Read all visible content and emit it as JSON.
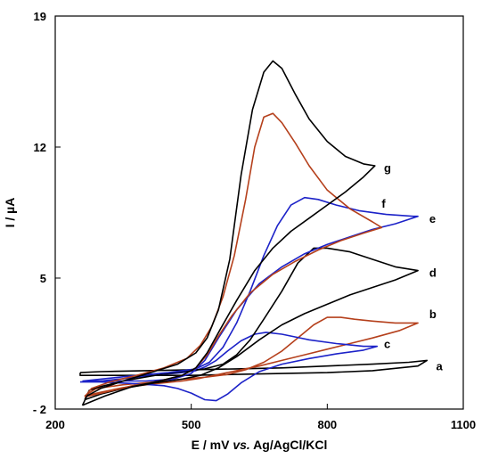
{
  "chart_data": {
    "type": "line",
    "xlabel_parts": [
      "E / mV ",
      "vs.",
      " Ag/AgCl/KCl"
    ],
    "ylabel": "I / µA",
    "xlim": [
      200,
      1100
    ],
    "ylim": [
      -2,
      19
    ],
    "xticks": [
      "200",
      "500",
      "800",
      "1100"
    ],
    "yticks": [
      "- 2",
      "5",
      "12",
      "19"
    ],
    "ytick_values": [
      -2,
      5,
      12,
      19
    ],
    "xtick_values": [
      200,
      500,
      800,
      1100
    ],
    "grid": false,
    "legend": "none",
    "series": [
      {
        "name": "a",
        "color": "#000000",
        "label_pos": [
          1040,
          0.3
        ],
        "points": [
          [
            255,
            -0.05
          ],
          [
            300,
            0.0
          ],
          [
            400,
            0.05
          ],
          [
            500,
            0.1
          ],
          [
            600,
            0.15
          ],
          [
            700,
            0.2
          ],
          [
            800,
            0.3
          ],
          [
            900,
            0.4
          ],
          [
            980,
            0.5
          ],
          [
            1020,
            0.6
          ],
          [
            1000,
            0.3
          ],
          [
            900,
            0.05
          ],
          [
            800,
            -0.05
          ],
          [
            700,
            -0.1
          ],
          [
            600,
            -0.15
          ],
          [
            500,
            -0.2
          ],
          [
            400,
            -0.2
          ],
          [
            300,
            -0.2
          ],
          [
            255,
            -0.2
          ],
          [
            255,
            -0.05
          ]
        ]
      },
      {
        "name": "b",
        "color": "#b5401c",
        "label_pos": [
          1025,
          3.1
        ],
        "points": [
          [
            265,
            -1.3
          ],
          [
            290,
            -0.9
          ],
          [
            350,
            -0.7
          ],
          [
            420,
            -0.55
          ],
          [
            480,
            -0.4
          ],
          [
            530,
            -0.3
          ],
          [
            580,
            -0.15
          ],
          [
            620,
            0.1
          ],
          [
            660,
            0.5
          ],
          [
            700,
            1.1
          ],
          [
            740,
            1.9
          ],
          [
            770,
            2.5
          ],
          [
            800,
            2.9
          ],
          [
            830,
            2.9
          ],
          [
            860,
            2.8
          ],
          [
            900,
            2.7
          ],
          [
            950,
            2.6
          ],
          [
            1000,
            2.6
          ],
          [
            960,
            2.2
          ],
          [
            900,
            1.8
          ],
          [
            850,
            1.5
          ],
          [
            800,
            1.2
          ],
          [
            750,
            0.9
          ],
          [
            700,
            0.6
          ],
          [
            650,
            0.3
          ],
          [
            600,
            0.05
          ],
          [
            560,
            -0.15
          ],
          [
            520,
            -0.35
          ],
          [
            480,
            -0.5
          ],
          [
            420,
            -0.65
          ],
          [
            350,
            -0.85
          ],
          [
            300,
            -1.1
          ],
          [
            265,
            -1.3
          ]
        ]
      },
      {
        "name": "c",
        "color": "#1c22c8",
        "label_pos": [
          925,
          1.5
        ],
        "points": [
          [
            255,
            -0.55
          ],
          [
            300,
            -0.5
          ],
          [
            380,
            -0.3
          ],
          [
            440,
            -0.15
          ],
          [
            480,
            -0.05
          ],
          [
            510,
            0.05
          ],
          [
            530,
            0.25
          ],
          [
            555,
            0.6
          ],
          [
            580,
            1.1
          ],
          [
            610,
            1.65
          ],
          [
            640,
            2.0
          ],
          [
            665,
            2.1
          ],
          [
            700,
            2.0
          ],
          [
            760,
            1.7
          ],
          [
            820,
            1.5
          ],
          [
            880,
            1.35
          ],
          [
            910,
            1.35
          ],
          [
            880,
            1.15
          ],
          [
            820,
            0.95
          ],
          [
            760,
            0.7
          ],
          [
            700,
            0.4
          ],
          [
            650,
            0.0
          ],
          [
            610,
            -0.6
          ],
          [
            580,
            -1.2
          ],
          [
            555,
            -1.55
          ],
          [
            530,
            -1.5
          ],
          [
            500,
            -1.15
          ],
          [
            470,
            -0.9
          ],
          [
            440,
            -0.75
          ],
          [
            380,
            -0.65
          ],
          [
            300,
            -0.55
          ],
          [
            255,
            -0.55
          ]
        ]
      },
      {
        "name": "d",
        "color": "#000000",
        "label_pos": [
          1025,
          5.3
        ],
        "points": [
          [
            265,
            -1.5
          ],
          [
            275,
            -1.0
          ],
          [
            300,
            -0.8
          ],
          [
            350,
            -0.5
          ],
          [
            420,
            -0.2
          ],
          [
            480,
            0.0
          ],
          [
            530,
            0.15
          ],
          [
            570,
            0.4
          ],
          [
            600,
            0.9
          ],
          [
            630,
            1.7
          ],
          [
            660,
            2.8
          ],
          [
            700,
            4.3
          ],
          [
            735,
            5.8
          ],
          [
            770,
            6.6
          ],
          [
            800,
            6.6
          ],
          [
            850,
            6.4
          ],
          [
            900,
            6.0
          ],
          [
            950,
            5.6
          ],
          [
            1000,
            5.4
          ],
          [
            950,
            4.9
          ],
          [
            900,
            4.5
          ],
          [
            850,
            4.1
          ],
          [
            800,
            3.6
          ],
          [
            750,
            3.1
          ],
          [
            700,
            2.5
          ],
          [
            650,
            1.7
          ],
          [
            600,
            0.8
          ],
          [
            560,
            0.2
          ],
          [
            520,
            -0.2
          ],
          [
            480,
            -0.4
          ],
          [
            420,
            -0.6
          ],
          [
            350,
            -0.9
          ],
          [
            300,
            -1.2
          ],
          [
            265,
            -1.5
          ]
        ]
      },
      {
        "name": "e",
        "color": "#1c22c8",
        "label_pos": [
          1025,
          8.2
        ],
        "points": [
          [
            260,
            -0.5
          ],
          [
            300,
            -0.4
          ],
          [
            380,
            -0.2
          ],
          [
            450,
            -0.05
          ],
          [
            510,
            0.15
          ],
          [
            540,
            0.5
          ],
          [
            570,
            1.3
          ],
          [
            600,
            2.6
          ],
          [
            630,
            4.3
          ],
          [
            660,
            6.2
          ],
          [
            690,
            7.8
          ],
          [
            720,
            8.9
          ],
          [
            750,
            9.3
          ],
          [
            780,
            9.2
          ],
          [
            820,
            8.9
          ],
          [
            870,
            8.6
          ],
          [
            930,
            8.4
          ],
          [
            990,
            8.3
          ],
          [
            1000,
            8.3
          ],
          [
            950,
            7.9
          ],
          [
            900,
            7.6
          ],
          [
            850,
            7.2
          ],
          [
            800,
            6.8
          ],
          [
            750,
            6.3
          ],
          [
            700,
            5.6
          ],
          [
            650,
            4.7
          ],
          [
            600,
            3.3
          ],
          [
            560,
            1.8
          ],
          [
            530,
            0.6
          ],
          [
            500,
            -0.1
          ],
          [
            460,
            -0.4
          ],
          [
            400,
            -0.5
          ],
          [
            330,
            -0.5
          ],
          [
            260,
            -0.5
          ]
        ]
      },
      {
        "name": "f",
        "color": "#b5401c",
        "label_pos": [
          920,
          9.0
        ],
        "points": [
          [
            265,
            -1.35
          ],
          [
            280,
            -0.9
          ],
          [
            320,
            -0.55
          ],
          [
            380,
            -0.2
          ],
          [
            440,
            0.2
          ],
          [
            490,
            0.7
          ],
          [
            520,
            1.4
          ],
          [
            545,
            2.4
          ],
          [
            570,
            4.0
          ],
          [
            595,
            6.2
          ],
          [
            620,
            9.2
          ],
          [
            640,
            12.0
          ],
          [
            660,
            13.6
          ],
          [
            680,
            13.8
          ],
          [
            700,
            13.3
          ],
          [
            730,
            12.2
          ],
          [
            760,
            11.0
          ],
          [
            800,
            9.7
          ],
          [
            850,
            8.7
          ],
          [
            900,
            8.0
          ],
          [
            920,
            7.7
          ],
          [
            880,
            7.4
          ],
          [
            830,
            7.0
          ],
          [
            780,
            6.5
          ],
          [
            730,
            5.9
          ],
          [
            680,
            5.2
          ],
          [
            630,
            4.2
          ],
          [
            590,
            3.0
          ],
          [
            560,
            1.9
          ],
          [
            535,
            0.9
          ],
          [
            510,
            0.2
          ],
          [
            480,
            -0.2
          ],
          [
            430,
            -0.5
          ],
          [
            370,
            -0.75
          ],
          [
            310,
            -1.1
          ],
          [
            265,
            -1.35
          ]
        ]
      },
      {
        "name": "g",
        "color": "#000000",
        "label_pos": [
          925,
          10.9
        ],
        "points": [
          [
            260,
            -1.8
          ],
          [
            270,
            -1.3
          ],
          [
            300,
            -0.9
          ],
          [
            350,
            -0.5
          ],
          [
            410,
            -0.05
          ],
          [
            470,
            0.4
          ],
          [
            510,
            1.0
          ],
          [
            535,
            1.8
          ],
          [
            560,
            3.3
          ],
          [
            585,
            6.0
          ],
          [
            610,
            10.5
          ],
          [
            635,
            14.0
          ],
          [
            660,
            16.0
          ],
          [
            680,
            16.6
          ],
          [
            700,
            16.2
          ],
          [
            730,
            14.8
          ],
          [
            760,
            13.5
          ],
          [
            800,
            12.3
          ],
          [
            840,
            11.5
          ],
          [
            880,
            11.1
          ],
          [
            905,
            11.0
          ],
          [
            880,
            10.4
          ],
          [
            840,
            9.6
          ],
          [
            800,
            8.9
          ],
          [
            760,
            8.2
          ],
          [
            720,
            7.5
          ],
          [
            680,
            6.6
          ],
          [
            640,
            5.4
          ],
          [
            600,
            3.8
          ],
          [
            565,
            2.3
          ],
          [
            535,
            1.0
          ],
          [
            510,
            0.2
          ],
          [
            480,
            -0.2
          ],
          [
            430,
            -0.5
          ],
          [
            370,
            -0.8
          ],
          [
            310,
            -1.3
          ],
          [
            260,
            -1.8
          ]
        ]
      }
    ]
  }
}
